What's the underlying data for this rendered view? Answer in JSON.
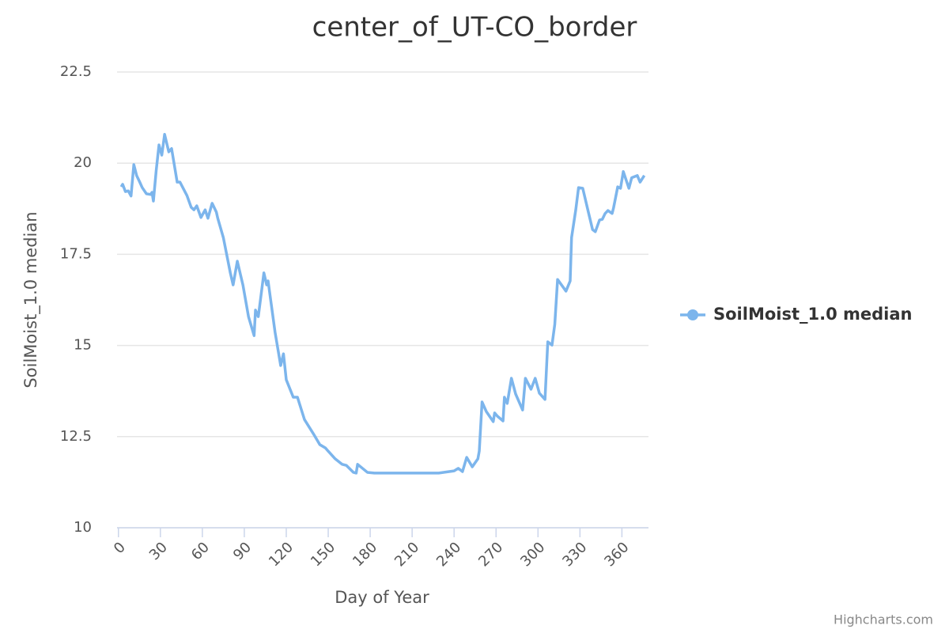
{
  "chart_data": {
    "type": "line",
    "title": "center_of_UT-CO_border",
    "x_label": "Day of Year",
    "y_label": "SoilMoist_1.0 median",
    "credits": "Highcharts.com",
    "x": [
      2,
      3,
      5,
      7,
      9,
      11,
      13,
      15,
      17,
      20,
      23,
      24,
      25,
      27,
      29,
      31,
      33,
      36,
      38,
      42,
      44,
      49,
      52,
      54,
      56,
      59,
      62,
      64,
      67,
      70,
      71,
      75,
      80,
      82,
      85,
      89,
      93,
      97,
      98,
      100,
      104,
      106,
      107,
      112,
      116,
      118,
      120,
      125,
      128,
      133,
      140,
      144,
      148,
      150,
      155,
      160,
      163,
      168,
      170,
      171,
      178,
      183,
      198,
      215,
      229,
      240,
      243,
      246,
      249,
      253,
      257,
      258,
      260,
      263,
      268,
      269,
      271,
      275,
      276,
      278,
      281,
      284,
      289,
      291,
      295,
      298,
      301,
      305,
      307,
      310,
      312,
      314,
      320,
      323,
      324,
      327,
      329,
      332,
      336,
      339,
      341,
      344,
      346,
      348,
      350,
      353,
      354,
      357,
      359,
      361,
      365,
      367,
      371,
      373,
      376
    ],
    "series": [
      {
        "name": "SoilMoist_1.0 median",
        "color": "#7cb5ec",
        "values": [
          19.35,
          19.42,
          19.22,
          19.24,
          19.1,
          19.96,
          19.66,
          19.5,
          19.33,
          19.16,
          19.14,
          19.2,
          18.96,
          19.8,
          20.5,
          20.22,
          20.79,
          20.31,
          20.4,
          19.48,
          19.48,
          19.11,
          18.79,
          18.72,
          18.83,
          18.51,
          18.72,
          18.49,
          18.9,
          18.66,
          18.49,
          17.96,
          16.99,
          16.66,
          17.31,
          16.66,
          15.79,
          15.27,
          15.97,
          15.79,
          16.99,
          16.66,
          16.77,
          15.36,
          14.45,
          14.77,
          14.06,
          13.58,
          13.58,
          12.97,
          12.54,
          12.28,
          12.19,
          12.1,
          11.89,
          11.74,
          11.71,
          11.52,
          11.5,
          11.74,
          11.52,
          11.5,
          11.5,
          11.5,
          11.5,
          11.56,
          11.63,
          11.54,
          11.93,
          11.67,
          11.89,
          12.1,
          13.45,
          13.19,
          12.91,
          13.15,
          13.06,
          12.93,
          13.58,
          13.41,
          14.1,
          13.67,
          13.23,
          14.1,
          13.8,
          14.1,
          13.69,
          13.52,
          15.1,
          15.01,
          15.58,
          16.81,
          16.49,
          16.77,
          17.96,
          18.72,
          19.33,
          19.31,
          18.66,
          18.18,
          18.12,
          18.44,
          18.46,
          18.62,
          18.7,
          18.62,
          18.77,
          19.35,
          19.31,
          19.77,
          19.31,
          19.6,
          19.66,
          19.48,
          19.66
        ]
      }
    ],
    "xlim": [
      -1,
      379
    ],
    "xticks": [
      0,
      30,
      60,
      90,
      120,
      150,
      180,
      210,
      240,
      270,
      300,
      330,
      360
    ],
    "ylim": [
      10,
      22.5
    ],
    "yticks": [
      10,
      12.5,
      15,
      17.5,
      20,
      22.5
    ],
    "grid": true,
    "legend": "right"
  }
}
